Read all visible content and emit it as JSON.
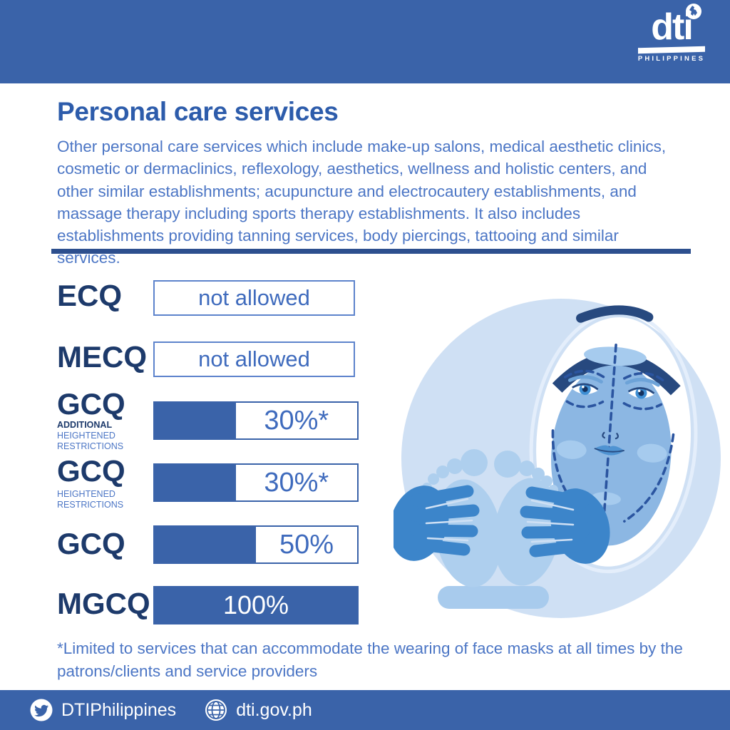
{
  "brand": {
    "logo_text": "dti",
    "logo_sub": "PHILIPPINES"
  },
  "header": {
    "title": "Personal care services",
    "description": "Other personal care services which include make-up salons, medical aesthetic clinics, cosmetic or dermaclinics, reflexology, aesthetics, wellness and holistic centers, and other similar establishments; acupuncture and electrocautery establishments, and massage therapy including sports therapy establishments. It also includes establishments providing tanning services, body piercings, tattooing and similar services."
  },
  "chart_data": {
    "type": "bar",
    "categories": [
      "ECQ",
      "MECQ",
      "GCQ (ADDITIONAL HEIGHTENED RESTRICTIONS)",
      "GCQ (HEIGHTENED RESTRICTIONS)",
      "GCQ",
      "MGCQ"
    ],
    "values": [
      0,
      0,
      30,
      30,
      50,
      100
    ],
    "labels": [
      "not allowed",
      "not allowed",
      "30%*",
      "30%*",
      "50%",
      "100%"
    ],
    "title": "Personal care services",
    "xlabel": "",
    "ylabel": "",
    "xlim": [
      0,
      100
    ],
    "legend": "none",
    "grid": false
  },
  "rows": [
    {
      "label": "ECQ",
      "kind": "box",
      "text": "not allowed"
    },
    {
      "label": "MECQ",
      "kind": "box",
      "text": "not allowed"
    },
    {
      "label": "GCQ",
      "sub1": "ADDITIONAL",
      "sub2": "HEIGHTENED",
      "sub3": "RESTRICTIONS",
      "kind": "bar",
      "text": "30%*",
      "value": 30,
      "fill_percent": 40
    },
    {
      "label": "GCQ",
      "sub2": "HEIGHTENED",
      "sub3": "RESTRICTIONS",
      "kind": "bar",
      "text": "30%*",
      "value": 30,
      "fill_percent": 40
    },
    {
      "label": "GCQ",
      "kind": "bar",
      "text": "50%",
      "value": 50,
      "fill_percent": 50
    },
    {
      "label": "MGCQ",
      "kind": "bar",
      "text": "100%",
      "value": 100,
      "fill_percent": 100
    }
  ],
  "footnote": "*Limited to services that can accommodate the wearing of face masks at all times by the patrons/clients and service providers",
  "footer": {
    "twitter_handle": "DTIPhilippines",
    "website": "dti.gov.ph"
  },
  "colors": {
    "band_blue": "#3a63a9",
    "navy": "#1d3a6b",
    "title_blue": "#2d5cab",
    "body_blue": "#4c76c5",
    "bar_fill": "#3a63a9",
    "divider": "#2d4f8e",
    "light_circle": "#cfe0f4",
    "skin_blue": "#8cb7e3",
    "hand_blue": "#3c85ca",
    "feet_blue": "#aecfee"
  }
}
